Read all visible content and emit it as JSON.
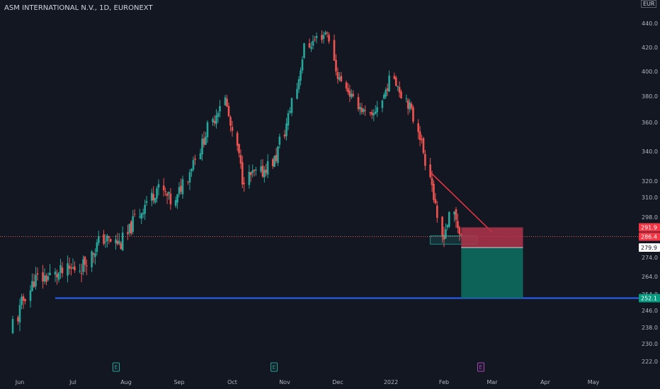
{
  "header": {
    "title": "ASM INTERNATIONAL N.V., 1D, EURONEXT",
    "currency": "EUR"
  },
  "colors": {
    "background": "#131722",
    "up": "#26a69a",
    "down": "#ef5350",
    "support_line": "#2962ff",
    "trend_line": "#f23645",
    "stop_zone": "#b2344a",
    "target_zone": "#0e6b5e",
    "axis_text": "#b2b5be"
  },
  "chart_data": {
    "type": "candlestick",
    "title": "ASM INTERNATIONAL N.V., 1D, EURONEXT",
    "y_axis": {
      "ticks": [
        "440.0",
        "420.0",
        "400.0",
        "380.0",
        "360.0",
        "340.0",
        "320.0",
        "310.0",
        "298.0",
        "274.0",
        "264.0",
        "254.0",
        "246.0",
        "238.0",
        "230.0",
        "222.0"
      ]
    },
    "x_axis": {
      "ticks": [
        "Jun",
        "Jul",
        "Aug",
        "Sep",
        "Oct",
        "Nov",
        "Dec",
        "2022",
        "Feb",
        "Mar",
        "Apr",
        "May"
      ]
    },
    "price_tags": [
      {
        "label": "291.9",
        "bg": "#f23645",
        "fg": "#ffffff"
      },
      {
        "label": "286.4",
        "bg": "#f23645",
        "fg": "#ffffff"
      },
      {
        "label": "279.9",
        "bg": "#ffffff",
        "fg": "#131722"
      },
      {
        "label": "252.1",
        "bg": "#089981",
        "fg": "#ffffff"
      }
    ],
    "event_markers": [
      {
        "label": "E",
        "color": "#26a69a"
      },
      {
        "label": "E",
        "color": "#26a69a"
      },
      {
        "label": "E",
        "color": "#ab47bc"
      }
    ],
    "levels": {
      "support": 252.1,
      "last_price": 286.4,
      "entry": 279.9,
      "stop": 291.9
    },
    "anchor_closes": [
      {
        "date": "2021-05-28",
        "close": 238
      },
      {
        "date": "2021-06-10",
        "close": 262
      },
      {
        "date": "2021-06-28",
        "close": 266
      },
      {
        "date": "2021-07-08",
        "close": 270
      },
      {
        "date": "2021-07-20",
        "close": 285
      },
      {
        "date": "2021-07-30",
        "close": 282
      },
      {
        "date": "2021-08-10",
        "close": 300
      },
      {
        "date": "2021-08-20",
        "close": 316
      },
      {
        "date": "2021-08-31",
        "close": 306
      },
      {
        "date": "2021-09-15",
        "close": 345
      },
      {
        "date": "2021-09-28",
        "close": 378
      },
      {
        "date": "2021-10-08",
        "close": 322
      },
      {
        "date": "2021-10-20",
        "close": 326
      },
      {
        "date": "2021-10-28",
        "close": 336
      },
      {
        "date": "2021-11-05",
        "close": 370
      },
      {
        "date": "2021-11-15",
        "close": 420
      },
      {
        "date": "2021-11-26",
        "close": 434
      },
      {
        "date": "2021-12-01",
        "close": 400
      },
      {
        "date": "2021-12-12",
        "close": 376
      },
      {
        "date": "2021-12-22",
        "close": 362
      },
      {
        "date": "2022-01-04",
        "close": 396
      },
      {
        "date": "2022-01-14",
        "close": 368
      },
      {
        "date": "2022-01-24",
        "close": 334
      },
      {
        "date": "2022-02-01",
        "close": 286
      },
      {
        "date": "2022-02-08",
        "close": 300
      },
      {
        "date": "2022-02-14",
        "close": 286
      }
    ]
  }
}
